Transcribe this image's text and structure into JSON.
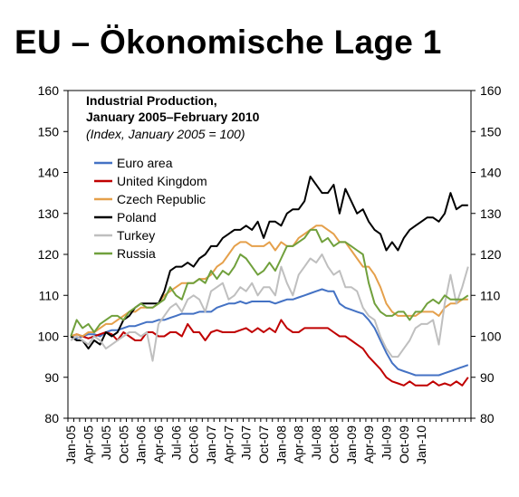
{
  "slide": {
    "title": "EU – Ökonomische Lage 1"
  },
  "chart_data": {
    "type": "line",
    "title": "Industrial Production,",
    "title_line2": "January 2005–February 2010",
    "subtitle": "(Index, January 2005 = 100)",
    "xlabel": "",
    "ylabel": "",
    "ylim": [
      80,
      160
    ],
    "yticks": [
      80,
      90,
      100,
      110,
      120,
      130,
      140,
      150,
      160
    ],
    "y_axis_sides": "left and right",
    "grid": false,
    "legend_position": "top-left inside plot",
    "x_tick_labels": [
      "Jan-05",
      "Apr-05",
      "Jul-05",
      "Oct-05",
      "Jan-06",
      "Apr-06",
      "Jul-06",
      "Oct-06",
      "Jan-07",
      "Apr-07",
      "Jul-07",
      "Oct-07",
      "Jan-08",
      "Apr-08",
      "Jul-08",
      "Oct-08",
      "Jan-09",
      "Apr-09",
      "Jul-09",
      "Oct-09",
      "Jan-10"
    ],
    "x_start": "Jan-05",
    "x_end": "Feb-10",
    "series": [
      {
        "name": "Euro area",
        "color": "#4472C4",
        "values": [
          100,
          99.5,
          100,
          100.5,
          100.5,
          100,
          101,
          101.5,
          101.5,
          102,
          102.5,
          102.5,
          103,
          103.5,
          103.5,
          104,
          104,
          104.5,
          105,
          105.5,
          105.5,
          105.5,
          106,
          106,
          106,
          107,
          107.5,
          108,
          108,
          108.5,
          108,
          108.5,
          108.5,
          108.5,
          108.5,
          108,
          108.5,
          109,
          109,
          109.5,
          110,
          110.5,
          111,
          111.5,
          111,
          111,
          108,
          107,
          106.5,
          106,
          105.5,
          104,
          102,
          99,
          96,
          93.5,
          92,
          91.5,
          91,
          90.5,
          90.5,
          90.5,
          90.5,
          90.5,
          91,
          91.5,
          92,
          92.5,
          93
        ]
      },
      {
        "name": "United Kingdom",
        "color": "#C00000",
        "values": [
          100,
          100.5,
          100,
          99.5,
          100,
          100.5,
          101,
          100.5,
          99,
          101,
          100,
          99,
          99,
          101,
          101,
          100,
          100,
          101,
          101,
          100,
          103,
          101,
          101,
          99,
          101,
          101.5,
          101,
          101,
          101,
          101.5,
          102,
          101,
          102,
          101,
          102,
          101,
          104,
          102,
          101,
          101,
          102,
          102,
          102,
          102,
          102,
          101,
          100,
          100,
          99,
          98,
          97,
          95,
          93.5,
          92,
          90,
          89,
          88.5,
          88,
          89,
          88,
          88,
          88,
          89,
          88,
          88.5,
          88,
          89,
          88,
          90
        ]
      },
      {
        "name": "Czech Republic",
        "color": "#E5A04B",
        "values": [
          100,
          100.5,
          100,
          101,
          101,
          102,
          103,
          103,
          104,
          105,
          106,
          106,
          107,
          107,
          107,
          108,
          110,
          111,
          112,
          113,
          113,
          113,
          114,
          114,
          115,
          117,
          118,
          120,
          122,
          123,
          123,
          122,
          122,
          122,
          123,
          121,
          123,
          122,
          122,
          124,
          125,
          126,
          127,
          127,
          126,
          125,
          123,
          123,
          121,
          119,
          117,
          117,
          115,
          112,
          108,
          106,
          105,
          105,
          105,
          105,
          106,
          106,
          106,
          105,
          107,
          108,
          108,
          109,
          109
        ]
      },
      {
        "name": "Poland",
        "color": "#000000",
        "values": [
          100,
          99,
          99,
          97,
          99,
          98,
          101,
          100,
          101,
          104,
          105,
          107,
          108,
          108,
          108,
          108,
          111,
          116,
          117,
          117,
          118,
          117,
          119,
          120,
          122,
          122,
          124,
          125,
          126,
          126,
          127,
          126,
          128,
          124,
          128,
          128,
          127,
          130,
          131,
          131,
          133,
          139,
          137,
          135,
          135,
          137,
          130,
          136,
          133,
          130,
          131,
          128,
          126,
          125,
          121,
          123,
          121,
          124,
          126,
          127,
          128,
          129,
          129,
          128,
          130,
          135,
          131,
          132,
          132
        ]
      },
      {
        "name": "Turkey",
        "color": "#BFBFBF",
        "values": [
          99,
          100,
          99,
          98,
          100,
          99,
          97,
          98,
          99,
          100,
          101,
          101,
          100,
          101,
          94,
          103,
          105,
          107,
          108,
          106,
          109,
          110,
          109,
          106,
          111,
          112,
          113,
          109,
          110,
          112,
          111,
          113,
          110,
          112,
          112,
          110,
          117,
          113,
          110,
          115,
          117,
          119,
          118,
          120,
          117,
          115,
          116,
          112,
          112,
          111,
          107,
          105,
          104,
          100,
          97,
          95,
          95,
          97,
          99,
          102,
          103,
          103,
          104,
          98,
          108,
          115,
          108,
          112,
          117
        ]
      },
      {
        "name": "Russia",
        "color": "#70A03C",
        "values": [
          100,
          104,
          102,
          103,
          101,
          103,
          104,
          105,
          105,
          104,
          106,
          107,
          108,
          107,
          107,
          108,
          109,
          112,
          110,
          109,
          113,
          113,
          114,
          113,
          116,
          114,
          116,
          115,
          117,
          120,
          119,
          117,
          115,
          116,
          118,
          116,
          119,
          122,
          122,
          123,
          124,
          126,
          126,
          123,
          124,
          122,
          123,
          123,
          122,
          121,
          120,
          113,
          108,
          106,
          105,
          105,
          106,
          106,
          104,
          106,
          106,
          108,
          109,
          108,
          110,
          109,
          109,
          109,
          110
        ]
      }
    ]
  }
}
